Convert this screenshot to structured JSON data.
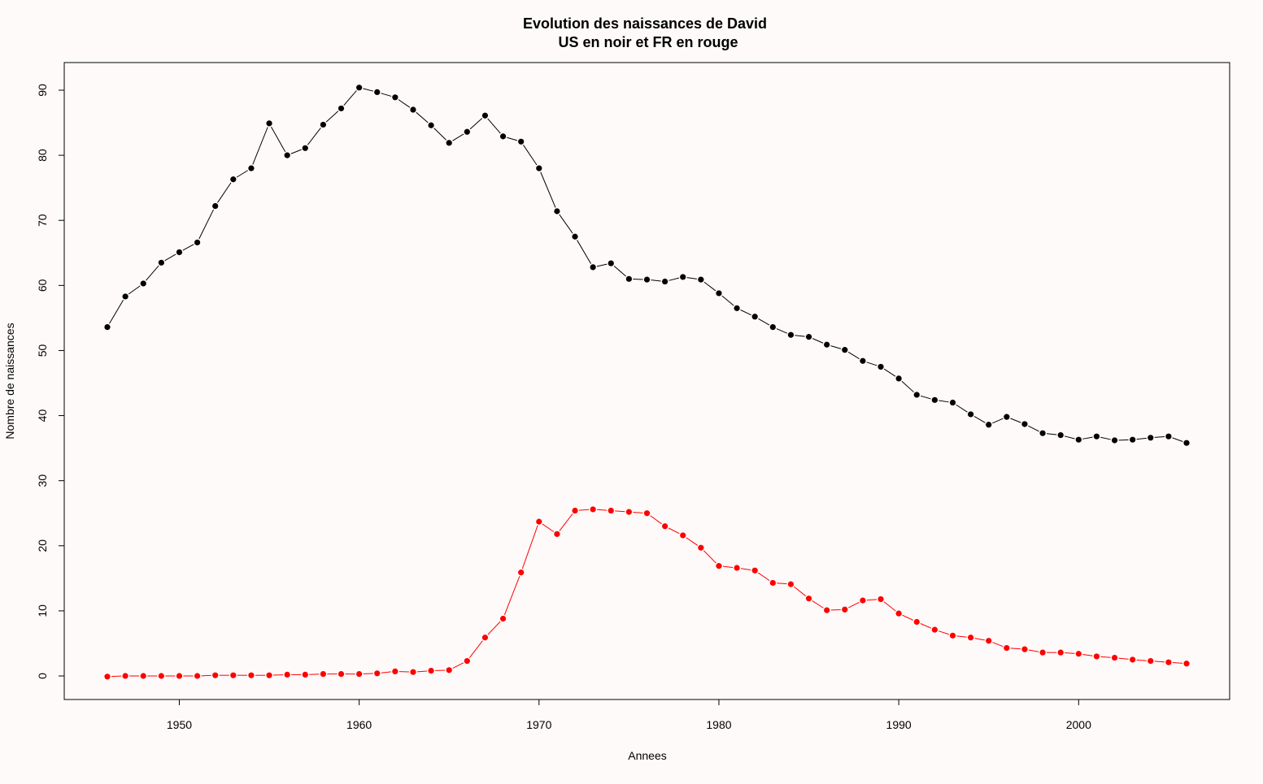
{
  "chart_data": {
    "type": "line",
    "title_line1": "Evolution des naissances de David",
    "title_line2": "US en noir et FR en rouge",
    "xlabel": "Annees",
    "ylabel": "Nombre de naissances",
    "xlim": [
      1946,
      2006
    ],
    "ylim": [
      0,
      90
    ],
    "x_ticks": [
      1950,
      1960,
      1970,
      1980,
      1990,
      2000
    ],
    "y_ticks": [
      0,
      10,
      20,
      30,
      40,
      50,
      60,
      70,
      80,
      90
    ],
    "x": [
      1946,
      1947,
      1948,
      1949,
      1950,
      1951,
      1952,
      1953,
      1954,
      1955,
      1956,
      1957,
      1958,
      1959,
      1960,
      1961,
      1962,
      1963,
      1964,
      1965,
      1966,
      1967,
      1968,
      1969,
      1970,
      1971,
      1972,
      1973,
      1974,
      1975,
      1976,
      1977,
      1978,
      1979,
      1980,
      1981,
      1982,
      1983,
      1984,
      1985,
      1986,
      1987,
      1988,
      1989,
      1990,
      1991,
      1992,
      1993,
      1994,
      1995,
      1996,
      1997,
      1998,
      1999,
      2000,
      2001,
      2002,
      2003,
      2004,
      2005,
      2006
    ],
    "series": [
      {
        "color": "#000000",
        "values": [
          53.6,
          58.3,
          60.3,
          63.5,
          65.1,
          66.6,
          72.2,
          76.3,
          78.0,
          84.9,
          80.0,
          81.1,
          84.7,
          87.2,
          90.4,
          89.7,
          88.9,
          87.0,
          84.6,
          81.9,
          83.6,
          86.1,
          82.9,
          82.1,
          78.0,
          71.4,
          67.5,
          62.8,
          63.4,
          61.0,
          60.9,
          60.6,
          61.3,
          60.9,
          58.8,
          56.5,
          55.2,
          53.6,
          52.4,
          52.1,
          50.9,
          50.1,
          48.4,
          47.5,
          45.7,
          43.2,
          42.4,
          42.0,
          40.2,
          38.6,
          39.8,
          38.7,
          37.3,
          37.0,
          36.3,
          36.8,
          36.2,
          36.3,
          36.6,
          36.8,
          35.8
        ]
      },
      {
        "color": "#ff0000",
        "values": [
          -0.1,
          0.0,
          0.0,
          0.0,
          0.0,
          0.0,
          0.1,
          0.1,
          0.1,
          0.1,
          0.2,
          0.2,
          0.3,
          0.3,
          0.3,
          0.4,
          0.7,
          0.6,
          0.8,
          0.9,
          2.3,
          5.9,
          8.8,
          15.9,
          23.7,
          21.8,
          25.4,
          25.6,
          25.4,
          25.2,
          25.0,
          23.0,
          21.6,
          19.7,
          16.9,
          16.6,
          16.2,
          14.3,
          14.1,
          11.9,
          10.1,
          10.2,
          11.6,
          11.8,
          9.6,
          8.3,
          7.1,
          6.2,
          5.9,
          5.4,
          4.3,
          4.1,
          3.6,
          3.6,
          3.4,
          3.0,
          2.8,
          2.5,
          2.3,
          2.1,
          1.9
        ]
      }
    ],
    "grid": false,
    "background": "#fffafa"
  }
}
